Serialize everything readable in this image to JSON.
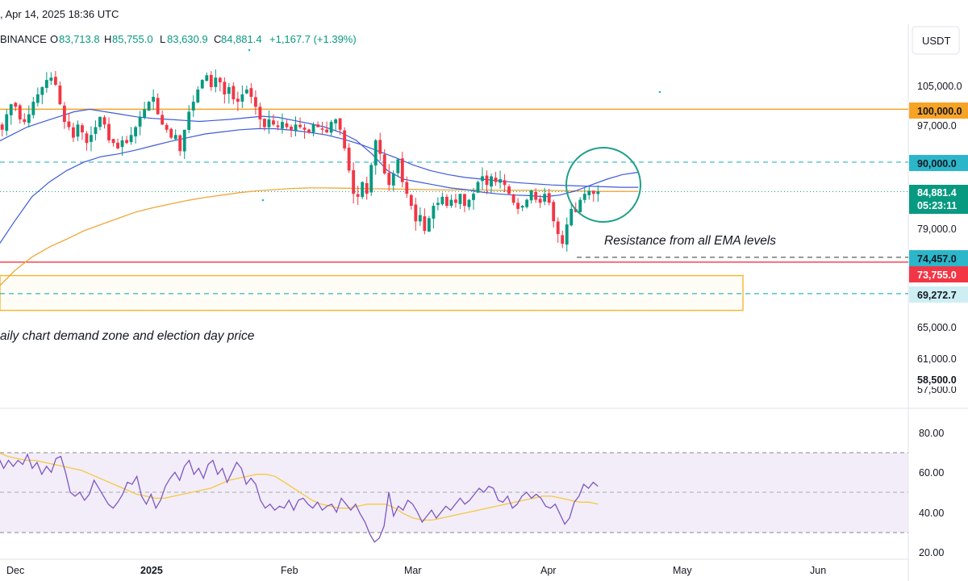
{
  "header": {
    "datetime": ", Apr 14, 2025 18:36 UTC",
    "exchange": "BINANCE",
    "open_label": "O",
    "open": "83,713.8",
    "high_label": "H",
    "high": "85,755.0",
    "low_label": "L",
    "low": "83,630.9",
    "close_label": "C",
    "close": "84,881.4",
    "change": "+1,167.7 (+1.39%)"
  },
  "currency_button": "USDT",
  "colors": {
    "up": "#089981",
    "down": "#f23645",
    "ema_fast": "#3d5bd9",
    "ema_slow": "#3d5bd9",
    "ema_200": "#f0a73a",
    "rsi": "#7e57c2",
    "rsi_ma": "#f5c842",
    "rsi_band": "#ede7f6",
    "resistance_100k": "#f7a325",
    "teal_dashed": "#2bb6c9",
    "support_red": "#f23645",
    "zone": "#f5b120",
    "circle": "#1f9e89"
  },
  "price_axis": {
    "ticks": [
      "105,000.0",
      "97,000.0",
      "79,000.0",
      "65,000.0",
      "61,000.0",
      "57,500.0"
    ],
    "badges": [
      {
        "label": "100,000.0",
        "price": 100000,
        "style": "orange"
      },
      {
        "label": "90,000.0",
        "price": 90000,
        "style": "teal"
      },
      {
        "label": "84,881.4",
        "sub": "05:23:11",
        "price": 84881.4,
        "style": "green"
      },
      {
        "label": "74,457.0",
        "price": 74457,
        "style": "teal"
      },
      {
        "label": "73,755.0",
        "price": 73755,
        "style": "red"
      },
      {
        "label": "69,272.7",
        "price": 69272.7,
        "style": "cyan-light"
      },
      {
        "label": "58,500.0",
        "price": 58500,
        "style": "white"
      }
    ]
  },
  "time_axis": [
    "Dec",
    "2025",
    "Feb",
    "Mar",
    "Apr",
    "May",
    "Jun"
  ],
  "annotations": {
    "resistance_note": "Resistance from all EMA levels",
    "zone_note": "aily chart demand zone and election day price"
  },
  "chart_data": [
    {
      "type": "candlestick",
      "title": "",
      "x_range": [
        "2024-11-25",
        "2025-06-10"
      ],
      "ylim": [
        57000,
        110000
      ],
      "y_scale": "log",
      "date_range": [
        "2024-11-25",
        "2025-04-14"
      ],
      "close_path": [
        98000,
        97000,
        96500,
        98500,
        97000,
        96000,
        99000,
        101000,
        100500,
        98000,
        97500,
        99000,
        101500,
        103000,
        104500,
        106000,
        106500,
        105000,
        101000,
        97500,
        96500,
        94500,
        97000,
        95500,
        93500,
        95000,
        96500,
        98500,
        97000,
        94000,
        93500,
        92500,
        94000,
        93500,
        95000,
        96500,
        98500,
        100000,
        101500,
        102500,
        99000,
        97000,
        96000,
        94500,
        95000,
        92000,
        96000,
        99500,
        101500,
        104000,
        106000,
        107000,
        104500,
        106500,
        105500,
        103000,
        104500,
        102000,
        101500,
        103000,
        104000,
        102500,
        100500,
        98000,
        96500,
        98000,
        97000,
        96500,
        97500,
        96500,
        96000,
        97000,
        96500,
        96000,
        95500,
        97000,
        96500,
        96000,
        95500,
        97500,
        98000,
        96000,
        92500,
        88500,
        84500,
        84000,
        86500,
        84500,
        89500,
        94000,
        91500,
        88000,
        86000,
        88000,
        90500,
        86500,
        84500,
        82500,
        80000,
        81000,
        78500,
        80500,
        82500,
        83000,
        84000,
        82500,
        83500,
        83000,
        84500,
        82500,
        83500,
        84500,
        86500,
        87500,
        86000,
        87500,
        86500,
        87000,
        86000,
        84500,
        83000,
        82000,
        82500,
        83500,
        85000,
        83500,
        83000,
        84500,
        83000,
        80000,
        78000,
        76500,
        79500,
        82000,
        81500,
        83500,
        84500,
        85000,
        84500,
        84881.4
      ],
      "ema_fast_path": [
        92000,
        93500,
        95000,
        96500,
        97500,
        98500,
        99500,
        100000,
        99500,
        99000,
        98500,
        98200,
        98000,
        97800,
        97600,
        97800,
        98000,
        98300,
        98600,
        98400,
        97800,
        97200,
        96500,
        95500,
        94000,
        91500,
        88500,
        87000,
        86500,
        86000,
        85500,
        85200,
        84800,
        84500,
        84300,
        84200,
        84000,
        84300,
        85000,
        86000,
        87000,
        87800,
        88200
      ],
      "ema_slow_path": [
        72500,
        76000,
        80000,
        84000,
        86500,
        88500,
        90000,
        91000,
        91500,
        92200,
        93000,
        93800,
        94500,
        95200,
        95600,
        96000,
        96200,
        96200,
        95900,
        95500,
        95000,
        94200,
        93200,
        92000,
        90800,
        89500,
        88500,
        87800,
        87300,
        87000,
        86700,
        86400,
        86200,
        86000,
        85900,
        85800,
        85700,
        85600,
        85600
      ],
      "ema_200_path": [
        68000,
        70000,
        72500,
        74500,
        76000,
        77200,
        78500,
        79500,
        80500,
        81500,
        82200,
        82800,
        83400,
        83900,
        84300,
        84700,
        85000,
        85200,
        85400,
        85500,
        85500,
        85450,
        85400,
        85350,
        85300,
        85250,
        85200,
        85150,
        85150,
        85150,
        85100,
        85100,
        85100,
        85050,
        85000,
        84950,
        84900,
        84900,
        84900
      ],
      "levels": [
        {
          "price": 100000,
          "style": "solid-orange"
        },
        {
          "price": 90000,
          "style": "dashed-teal"
        },
        {
          "price": 84881.4,
          "style": "dotted-green"
        },
        {
          "price": 74457,
          "style": "dashed-dark"
        },
        {
          "price": 73755,
          "style": "solid-red"
        },
        {
          "price": 69272.7,
          "style": "dashed-teal"
        }
      ],
      "demand_zone": {
        "from_price": 67000,
        "to_price": 71800
      }
    },
    {
      "type": "line",
      "title": "",
      "ylim": [
        20,
        80
      ],
      "y_ticks": [
        "80.00",
        "60.00",
        "40.00",
        "20.00"
      ],
      "band": [
        30,
        70
      ],
      "midline": 50,
      "series": [
        {
          "values": [
            71,
            66,
            68,
            64,
            67,
            62,
            66,
            63,
            66,
            64,
            69,
            62,
            65,
            59,
            63,
            60,
            67,
            68,
            60,
            50,
            48,
            50,
            46,
            49,
            56,
            52,
            48,
            44,
            42,
            45,
            49,
            55,
            54,
            58,
            48,
            44,
            49,
            42,
            46,
            53,
            57,
            60,
            56,
            63,
            66,
            59,
            62,
            57,
            64,
            66,
            59,
            62,
            55,
            60,
            65,
            62,
            54,
            57,
            54,
            46,
            42,
            44,
            41,
            43,
            42,
            46,
            41,
            46,
            47,
            44,
            42,
            45,
            41,
            43,
            44,
            40,
            47,
            44,
            41,
            44,
            39,
            35,
            29,
            25,
            27,
            33,
            50,
            38,
            43,
            41,
            46,
            44,
            40,
            35,
            38,
            41,
            37,
            40,
            43,
            41,
            44,
            47,
            44,
            46,
            49,
            52,
            50,
            53,
            52,
            46,
            45,
            48,
            42,
            44,
            48,
            50,
            47,
            49,
            47,
            43,
            42,
            44,
            39,
            34,
            37,
            45,
            48,
            54,
            52,
            55,
            53
          ]
        },
        {
          "values": [
            77,
            73,
            70,
            68,
            67,
            66,
            66,
            65,
            64,
            63,
            62,
            61,
            59,
            57,
            55,
            53,
            51,
            49,
            48,
            47,
            47,
            48,
            49,
            50,
            51,
            52,
            54,
            56,
            57,
            58,
            59,
            59,
            58,
            55,
            52,
            49,
            46,
            44,
            43,
            42,
            42,
            43,
            44,
            44,
            44,
            42,
            39,
            37,
            36,
            36,
            37,
            38,
            39,
            40,
            41,
            42,
            43,
            44,
            45,
            46,
            47,
            48,
            48,
            47,
            46,
            45,
            45,
            44
          ]
        }
      ]
    }
  ]
}
